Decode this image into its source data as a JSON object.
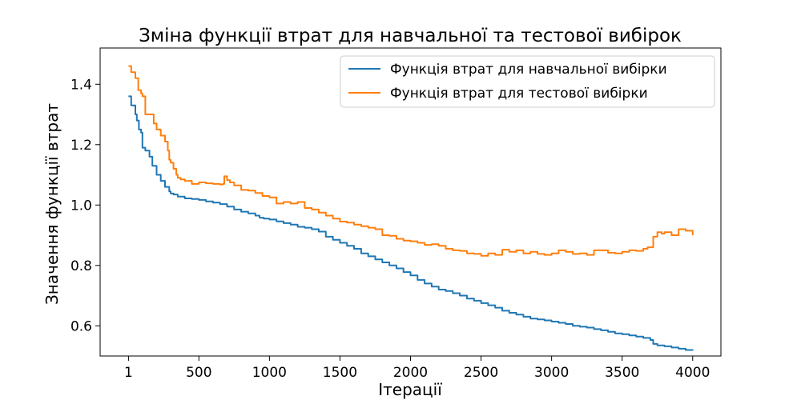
{
  "chart_data": {
    "type": "line",
    "title": "Зміна функції втрат для навчальної та тестової вибірок",
    "xlabel": "Ітерації",
    "ylabel": "Значення функції втрат",
    "xlim": [
      -200,
      4200
    ],
    "ylim": [
      0.5,
      1.52
    ],
    "x_ticks": [
      1,
      500,
      1000,
      1500,
      2000,
      2500,
      3000,
      3500,
      4000
    ],
    "x_tick_labels": [
      "1",
      "500",
      "1000",
      "1500",
      "2000",
      "2500",
      "3000",
      "3500",
      "4000"
    ],
    "y_ticks": [
      0.6,
      0.8,
      1.0,
      1.2,
      1.4
    ],
    "y_tick_labels": [
      "0.6",
      "0.8",
      "1.0",
      "1.2",
      "1.4"
    ],
    "grid": false,
    "legend_position": "top-right",
    "series": [
      {
        "name": "Функція втрат для навчальної вибірки",
        "color": "#1f77b4",
        "x": [
          1,
          20,
          50,
          60,
          75,
          90,
          100,
          120,
          150,
          170,
          200,
          230,
          260,
          290,
          300,
          320,
          350,
          400,
          450,
          500,
          550,
          600,
          650,
          700,
          750,
          800,
          850,
          900,
          930,
          960,
          1000,
          1050,
          1100,
          1150,
          1200,
          1250,
          1300,
          1350,
          1400,
          1450,
          1500,
          1550,
          1600,
          1650,
          1700,
          1750,
          1800,
          1850,
          1900,
          1950,
          2000,
          2050,
          2100,
          2150,
          2200,
          2250,
          2300,
          2350,
          2400,
          2450,
          2500,
          2550,
          2600,
          2650,
          2700,
          2750,
          2800,
          2850,
          2900,
          2950,
          3000,
          3050,
          3100,
          3150,
          3200,
          3250,
          3300,
          3350,
          3400,
          3450,
          3500,
          3550,
          3600,
          3650,
          3700,
          3720,
          3750,
          3800,
          3850,
          3900,
          3950,
          4000
        ],
        "values": [
          1.36,
          1.33,
          1.3,
          1.28,
          1.25,
          1.24,
          1.19,
          1.18,
          1.16,
          1.13,
          1.1,
          1.08,
          1.06,
          1.045,
          1.038,
          1.035,
          1.028,
          1.022,
          1.02,
          1.017,
          1.012,
          1.008,
          1.003,
          0.995,
          0.985,
          0.978,
          0.972,
          0.965,
          0.958,
          0.955,
          0.952,
          0.946,
          0.94,
          0.935,
          0.928,
          0.925,
          0.92,
          0.912,
          0.895,
          0.885,
          0.875,
          0.865,
          0.855,
          0.84,
          0.83,
          0.82,
          0.81,
          0.8,
          0.79,
          0.778,
          0.767,
          0.752,
          0.74,
          0.73,
          0.72,
          0.715,
          0.708,
          0.7,
          0.69,
          0.683,
          0.675,
          0.668,
          0.66,
          0.65,
          0.643,
          0.637,
          0.63,
          0.624,
          0.621,
          0.618,
          0.614,
          0.61,
          0.606,
          0.6,
          0.597,
          0.594,
          0.589,
          0.585,
          0.58,
          0.575,
          0.572,
          0.568,
          0.564,
          0.56,
          0.553,
          0.54,
          0.535,
          0.532,
          0.528,
          0.524,
          0.52,
          0.518
        ]
      },
      {
        "name": "Функція втрат для тестової вибірки",
        "color": "#ff7f0e",
        "x": [
          1,
          20,
          50,
          70,
          90,
          100,
          120,
          150,
          180,
          200,
          230,
          260,
          280,
          290,
          300,
          320,
          340,
          350,
          370,
          400,
          450,
          500,
          550,
          600,
          650,
          670,
          680,
          700,
          720,
          750,
          800,
          850,
          900,
          950,
          1000,
          1050,
          1100,
          1150,
          1200,
          1250,
          1300,
          1350,
          1400,
          1450,
          1500,
          1550,
          1600,
          1650,
          1700,
          1750,
          1800,
          1850,
          1900,
          1950,
          2000,
          2050,
          2100,
          2150,
          2200,
          2250,
          2300,
          2350,
          2400,
          2450,
          2500,
          2550,
          2600,
          2650,
          2700,
          2750,
          2800,
          2850,
          2900,
          2950,
          3000,
          3050,
          3100,
          3150,
          3200,
          3250,
          3300,
          3350,
          3400,
          3450,
          3500,
          3550,
          3600,
          3650,
          3680,
          3700,
          3720,
          3750,
          3780,
          3800,
          3850,
          3900,
          3950,
          4000
        ],
        "values": [
          1.46,
          1.44,
          1.42,
          1.38,
          1.37,
          1.36,
          1.3,
          1.3,
          1.27,
          1.25,
          1.23,
          1.21,
          1.18,
          1.15,
          1.14,
          1.12,
          1.1,
          1.09,
          1.085,
          1.08,
          1.07,
          1.075,
          1.072,
          1.07,
          1.068,
          1.07,
          1.095,
          1.082,
          1.075,
          1.065,
          1.05,
          1.048,
          1.04,
          1.03,
          1.025,
          1.005,
          1.01,
          1.005,
          1.01,
          0.99,
          0.985,
          0.975,
          0.965,
          0.955,
          0.945,
          0.942,
          0.935,
          0.93,
          0.925,
          0.92,
          0.9,
          0.898,
          0.888,
          0.882,
          0.88,
          0.875,
          0.868,
          0.87,
          0.865,
          0.855,
          0.85,
          0.848,
          0.84,
          0.838,
          0.832,
          0.84,
          0.835,
          0.852,
          0.845,
          0.85,
          0.84,
          0.845,
          0.838,
          0.835,
          0.84,
          0.85,
          0.845,
          0.838,
          0.84,
          0.835,
          0.85,
          0.85,
          0.842,
          0.84,
          0.845,
          0.85,
          0.848,
          0.855,
          0.86,
          0.86,
          0.895,
          0.91,
          0.905,
          0.91,
          0.9,
          0.92,
          0.915,
          0.9
        ]
      }
    ]
  }
}
